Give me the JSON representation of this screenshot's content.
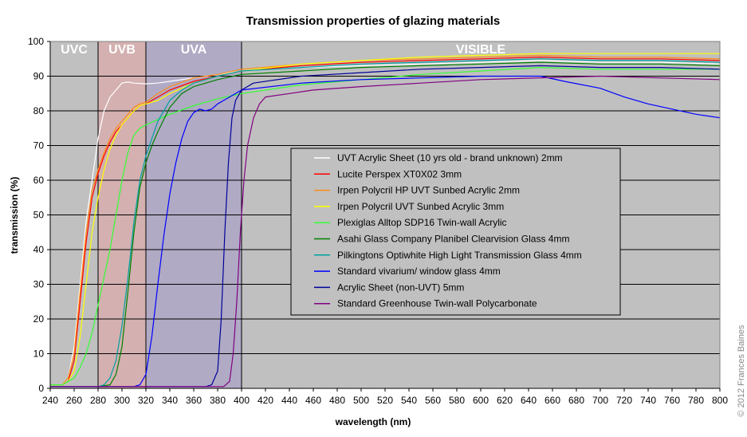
{
  "chart_data": {
    "type": "line",
    "title": "Transmission properties of glazing materials",
    "xlabel": "wavelength (nm)",
    "ylabel": "transmission (%)",
    "xlim": [
      240,
      800
    ],
    "ylim": [
      0,
      100
    ],
    "xticks": [
      240,
      260,
      280,
      300,
      320,
      340,
      360,
      380,
      400,
      420,
      440,
      460,
      480,
      500,
      520,
      540,
      560,
      580,
      600,
      620,
      640,
      660,
      680,
      700,
      720,
      740,
      760,
      780,
      800
    ],
    "yticks": [
      0,
      10,
      20,
      30,
      40,
      50,
      60,
      70,
      80,
      90,
      100
    ],
    "grid": "horizontal",
    "plot_background": "#c0c0c0",
    "legend_position": "center-right",
    "copyright": "© 2012 Frances Baines",
    "bands": [
      {
        "label": "UVC",
        "from": 240,
        "to": 280,
        "color": "#c0c0c0"
      },
      {
        "label": "UVB",
        "from": 280,
        "to": 320,
        "color": "#d4b0b0"
      },
      {
        "label": "UVA",
        "from": 320,
        "to": 400,
        "color": "#b0aac4"
      },
      {
        "label": "VISIBLE",
        "from": 400,
        "to": 800,
        "color": "#c0c0c0"
      }
    ],
    "series": [
      {
        "name": "UVT Acrylic Sheet (10 yrs old - brand unknown) 2mm",
        "color": "#ffffff",
        "points": [
          [
            240,
            1
          ],
          [
            250,
            1
          ],
          [
            255,
            3
          ],
          [
            260,
            12
          ],
          [
            265,
            30
          ],
          [
            270,
            48
          ],
          [
            275,
            60
          ],
          [
            280,
            72
          ],
          [
            285,
            80
          ],
          [
            290,
            84
          ],
          [
            295,
            86
          ],
          [
            300,
            88
          ],
          [
            305,
            88.3
          ],
          [
            310,
            88
          ],
          [
            320,
            87.8
          ],
          [
            330,
            88
          ],
          [
            340,
            88.5
          ],
          [
            360,
            89.5
          ],
          [
            380,
            90.5
          ],
          [
            400,
            91.5
          ],
          [
            450,
            92.5
          ],
          [
            500,
            93
          ],
          [
            550,
            93.5
          ],
          [
            600,
            94
          ],
          [
            650,
            94.5
          ],
          [
            700,
            94
          ],
          [
            750,
            94
          ],
          [
            800,
            93.5
          ]
        ]
      },
      {
        "name": "Lucite Perspex XT0X02 3mm",
        "color": "#ff0000",
        "points": [
          [
            240,
            1
          ],
          [
            250,
            1
          ],
          [
            255,
            2
          ],
          [
            260,
            8
          ],
          [
            265,
            25
          ],
          [
            270,
            42
          ],
          [
            275,
            55
          ],
          [
            280,
            62
          ],
          [
            285,
            67
          ],
          [
            290,
            71
          ],
          [
            295,
            74
          ],
          [
            300,
            76
          ],
          [
            305,
            78
          ],
          [
            310,
            80
          ],
          [
            315,
            81.5
          ],
          [
            320,
            82
          ],
          [
            330,
            84
          ],
          [
            340,
            86
          ],
          [
            360,
            88.5
          ],
          [
            380,
            90
          ],
          [
            400,
            91.5
          ],
          [
            450,
            93
          ],
          [
            500,
            94
          ],
          [
            550,
            94.5
          ],
          [
            600,
            95
          ],
          [
            650,
            95.5
          ],
          [
            700,
            95
          ],
          [
            750,
            95
          ],
          [
            800,
            94.5
          ]
        ]
      },
      {
        "name": "Irpen Polycril HP UVT Sunbed Acrylic 2mm",
        "color": "#ff8c1a",
        "points": [
          [
            240,
            1
          ],
          [
            250,
            1
          ],
          [
            255,
            3
          ],
          [
            260,
            10
          ],
          [
            265,
            28
          ],
          [
            270,
            45
          ],
          [
            275,
            57
          ],
          [
            280,
            63
          ],
          [
            285,
            68
          ],
          [
            290,
            72
          ],
          [
            295,
            75
          ],
          [
            300,
            77
          ],
          [
            305,
            79
          ],
          [
            310,
            81
          ],
          [
            315,
            82
          ],
          [
            320,
            82.5
          ],
          [
            330,
            85
          ],
          [
            340,
            87
          ],
          [
            360,
            89.5
          ],
          [
            380,
            90.5
          ],
          [
            400,
            92
          ],
          [
            450,
            93.5
          ],
          [
            500,
            94.5
          ],
          [
            550,
            95
          ],
          [
            600,
            95.5
          ],
          [
            650,
            96
          ],
          [
            700,
            95.5
          ],
          [
            750,
            95.5
          ],
          [
            800,
            95
          ]
        ]
      },
      {
        "name": "Irpen Polycril UVT Sunbed Acrylic 3mm",
        "color": "#ffff00",
        "points": [
          [
            240,
            1
          ],
          [
            250,
            1
          ],
          [
            255,
            2
          ],
          [
            260,
            5
          ],
          [
            265,
            15
          ],
          [
            270,
            30
          ],
          [
            275,
            45
          ],
          [
            280,
            55
          ],
          [
            285,
            63
          ],
          [
            290,
            69
          ],
          [
            295,
            73
          ],
          [
            300,
            76
          ],
          [
            305,
            78
          ],
          [
            310,
            80
          ],
          [
            315,
            81.5
          ],
          [
            320,
            82
          ],
          [
            330,
            83
          ],
          [
            340,
            85
          ],
          [
            360,
            88
          ],
          [
            380,
            90
          ],
          [
            400,
            91.5
          ],
          [
            450,
            93.5
          ],
          [
            500,
            94.5
          ],
          [
            550,
            95.5
          ],
          [
            600,
            96
          ],
          [
            650,
            96.5
          ],
          [
            700,
            96.5
          ],
          [
            750,
            96.5
          ],
          [
            800,
            96.5
          ]
        ]
      },
      {
        "name": "Plexiglas Alltop SDP16 Twin-wall Acrylic",
        "color": "#33ff33",
        "points": [
          [
            240,
            1
          ],
          [
            250,
            1
          ],
          [
            255,
            2
          ],
          [
            260,
            3
          ],
          [
            265,
            6
          ],
          [
            270,
            10
          ],
          [
            275,
            16
          ],
          [
            280,
            24
          ],
          [
            285,
            32
          ],
          [
            290,
            40
          ],
          [
            295,
            50
          ],
          [
            300,
            60
          ],
          [
            305,
            68
          ],
          [
            310,
            73
          ],
          [
            315,
            75
          ],
          [
            320,
            76
          ],
          [
            330,
            77.5
          ],
          [
            340,
            79
          ],
          [
            360,
            81.5
          ],
          [
            380,
            83.5
          ],
          [
            400,
            85
          ],
          [
            450,
            87.5
          ],
          [
            500,
            89
          ],
          [
            550,
            90.5
          ],
          [
            600,
            91.5
          ],
          [
            650,
            92.5
          ],
          [
            700,
            92
          ],
          [
            750,
            92
          ],
          [
            800,
            92
          ]
        ]
      },
      {
        "name": "Asahi Glass Company Planibel Clearvision Glass 4mm",
        "color": "#008000",
        "points": [
          [
            240,
            0.5
          ],
          [
            280,
            0.5
          ],
          [
            290,
            1
          ],
          [
            295,
            4
          ],
          [
            300,
            12
          ],
          [
            305,
            28
          ],
          [
            310,
            45
          ],
          [
            315,
            58
          ],
          [
            320,
            65
          ],
          [
            325,
            70
          ],
          [
            330,
            74
          ],
          [
            340,
            81
          ],
          [
            350,
            85
          ],
          [
            360,
            87
          ],
          [
            380,
            89
          ],
          [
            400,
            90.5
          ],
          [
            450,
            91.5
          ],
          [
            500,
            92.5
          ],
          [
            550,
            93
          ],
          [
            600,
            93.5
          ],
          [
            650,
            94
          ],
          [
            700,
            93.5
          ],
          [
            750,
            93.5
          ],
          [
            800,
            93
          ]
        ]
      },
      {
        "name": "Pilkingtons Optiwhite High Light Transmission Glass 4mm",
        "color": "#00a0a0",
        "points": [
          [
            240,
            0.5
          ],
          [
            280,
            0.5
          ],
          [
            285,
            1
          ],
          [
            290,
            3
          ],
          [
            295,
            8
          ],
          [
            300,
            18
          ],
          [
            305,
            32
          ],
          [
            310,
            48
          ],
          [
            315,
            60
          ],
          [
            320,
            67
          ],
          [
            325,
            72
          ],
          [
            330,
            77
          ],
          [
            340,
            83
          ],
          [
            350,
            86
          ],
          [
            360,
            88
          ],
          [
            380,
            90
          ],
          [
            400,
            91.5
          ],
          [
            450,
            92.5
          ],
          [
            500,
            93.5
          ],
          [
            550,
            94
          ],
          [
            600,
            94.5
          ],
          [
            650,
            95
          ],
          [
            700,
            94.5
          ],
          [
            750,
            94.5
          ],
          [
            800,
            94
          ]
        ]
      },
      {
        "name": "Standard vivarium/ window glass 4mm",
        "color": "#0000ff",
        "points": [
          [
            240,
            0.5
          ],
          [
            310,
            0.5
          ],
          [
            315,
            1
          ],
          [
            320,
            4
          ],
          [
            325,
            15
          ],
          [
            330,
            30
          ],
          [
            335,
            44
          ],
          [
            340,
            56
          ],
          [
            345,
            65
          ],
          [
            350,
            72
          ],
          [
            355,
            77
          ],
          [
            360,
            79.5
          ],
          [
            365,
            80.5
          ],
          [
            370,
            80
          ],
          [
            375,
            80.5
          ],
          [
            380,
            82
          ],
          [
            390,
            84
          ],
          [
            400,
            86
          ],
          [
            450,
            88
          ],
          [
            500,
            89
          ],
          [
            550,
            89.5
          ],
          [
            600,
            90
          ],
          [
            630,
            90
          ],
          [
            650,
            90
          ],
          [
            670,
            88.5
          ],
          [
            700,
            86.5
          ],
          [
            720,
            84
          ],
          [
            740,
            82
          ],
          [
            760,
            80.5
          ],
          [
            780,
            79
          ],
          [
            800,
            78
          ]
        ]
      },
      {
        "name": "Acrylic Sheet (non-UVT) 5mm",
        "color": "#000099",
        "points": [
          [
            240,
            0.5
          ],
          [
            370,
            0.5
          ],
          [
            375,
            1
          ],
          [
            380,
            5
          ],
          [
            383,
            20
          ],
          [
            386,
            45
          ],
          [
            389,
            65
          ],
          [
            392,
            78
          ],
          [
            395,
            83
          ],
          [
            400,
            86
          ],
          [
            410,
            88
          ],
          [
            450,
            90
          ],
          [
            500,
            91
          ],
          [
            550,
            92
          ],
          [
            600,
            92.5
          ],
          [
            650,
            93
          ],
          [
            700,
            92.5
          ],
          [
            750,
            92.5
          ],
          [
            800,
            92
          ]
        ]
      },
      {
        "name": "Standard Greenhouse Twin-wall Polycarbonate",
        "color": "#800080",
        "points": [
          [
            240,
            0.5
          ],
          [
            385,
            0.5
          ],
          [
            390,
            2
          ],
          [
            393,
            10
          ],
          [
            396,
            25
          ],
          [
            399,
            45
          ],
          [
            402,
            60
          ],
          [
            405,
            70
          ],
          [
            410,
            78
          ],
          [
            415,
            82
          ],
          [
            420,
            84
          ],
          [
            440,
            85
          ],
          [
            460,
            86
          ],
          [
            500,
            87
          ],
          [
            550,
            88
          ],
          [
            600,
            89
          ],
          [
            650,
            89.5
          ],
          [
            700,
            90
          ],
          [
            750,
            89.5
          ],
          [
            800,
            89
          ]
        ]
      }
    ]
  }
}
